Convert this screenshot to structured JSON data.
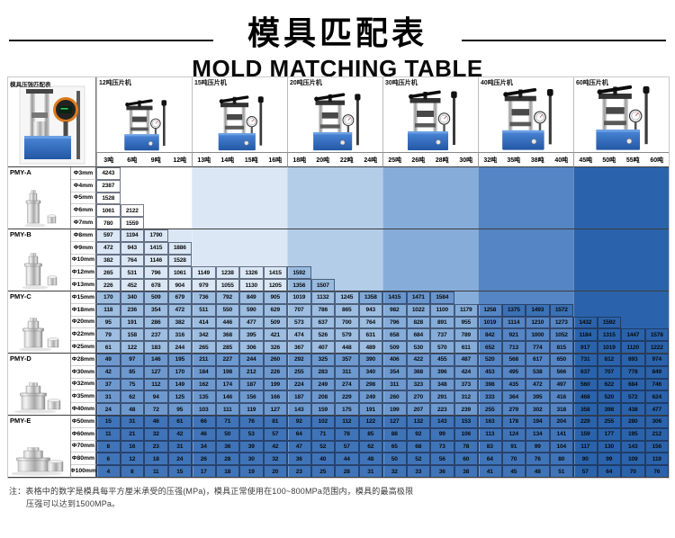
{
  "title": {
    "zh": "模具匹配表",
    "en": "MOLD MATCHING TABLE"
  },
  "corner": {
    "label": "模具压强匹配表"
  },
  "machines": [
    {
      "label": "12吨压片机",
      "tons": [
        "3吨",
        "6吨",
        "9吨",
        "12吨"
      ]
    },
    {
      "label": "15吨压片机",
      "tons": [
        "13吨",
        "14吨",
        "15吨",
        "16吨"
      ]
    },
    {
      "label": "20吨压片机",
      "tons": [
        "18吨",
        "20吨",
        "22吨",
        "24吨"
      ]
    },
    {
      "label": "30吨压片机",
      "tons": [
        "25吨",
        "26吨",
        "28吨",
        "30吨"
      ]
    },
    {
      "label": "40吨压片机",
      "tons": [
        "32吨",
        "35吨",
        "38吨",
        "40吨"
      ]
    },
    {
      "label": "60吨压片机",
      "tons": [
        "45吨",
        "50吨",
        "55吨",
        "60吨"
      ]
    }
  ],
  "columns_tons": [
    3,
    6,
    9,
    12,
    13,
    14,
    15,
    16,
    18,
    20,
    22,
    24,
    25,
    26,
    28,
    30,
    32,
    35,
    38,
    40,
    45,
    50,
    55,
    60
  ],
  "pressure_unit": "MPa",
  "mold_groups": [
    {
      "name": "PMY-A",
      "rows": [
        {
          "dia": "Φ3mm",
          "values": [
            4243
          ]
        },
        {
          "dia": "Φ4mm",
          "values": [
            2387
          ]
        },
        {
          "dia": "Φ5mm",
          "values": [
            1528
          ]
        },
        {
          "dia": "Φ6mm",
          "values": [
            1061,
            2122
          ]
        },
        {
          "dia": "Φ7mm",
          "values": [
            780,
            1559
          ]
        }
      ]
    },
    {
      "name": "PMY-B",
      "rows": [
        {
          "dia": "Φ8mm",
          "values": [
            597,
            1194,
            1790
          ]
        },
        {
          "dia": "Φ9mm",
          "values": [
            472,
            943,
            1415,
            1886
          ]
        },
        {
          "dia": "Φ10mm",
          "values": [
            382,
            764,
            1146,
            1528
          ]
        },
        {
          "dia": "Φ12mm",
          "values": [
            265,
            531,
            796,
            1061,
            1149,
            1238,
            1326,
            1415,
            1592
          ]
        },
        {
          "dia": "Φ13mm",
          "values": [
            226,
            452,
            678,
            904,
            979,
            1055,
            1130,
            1205,
            1356,
            1507
          ]
        }
      ]
    },
    {
      "name": "PMY-C",
      "rows": [
        {
          "dia": "Φ15mm",
          "values": [
            170,
            340,
            509,
            679,
            736,
            792,
            849,
            905,
            1019,
            1132,
            1245,
            1358,
            1415,
            1471,
            1584
          ]
        },
        {
          "dia": "Φ18mm",
          "values": [
            118,
            236,
            354,
            472,
            511,
            550,
            590,
            629,
            707,
            786,
            865,
            943,
            982,
            1022,
            1100,
            1179,
            1258,
            1375,
            1493,
            1572
          ]
        },
        {
          "dia": "Φ20mm",
          "values": [
            95,
            191,
            286,
            382,
            414,
            446,
            477,
            509,
            573,
            637,
            700,
            764,
            796,
            828,
            891,
            955,
            1019,
            1114,
            1210,
            1273,
            1432,
            1592
          ]
        },
        {
          "dia": "Φ22mm",
          "values": [
            79,
            158,
            237,
            316,
            342,
            368,
            395,
            421,
            474,
            526,
            579,
            631,
            658,
            684,
            737,
            789,
            842,
            921,
            1000,
            1052,
            1184,
            1315,
            1447,
            1578
          ]
        },
        {
          "dia": "Φ25mm",
          "values": [
            61,
            122,
            183,
            244,
            265,
            285,
            306,
            326,
            367,
            407,
            448,
            489,
            509,
            530,
            570,
            611,
            652,
            713,
            774,
            815,
            917,
            1019,
            1120,
            1222
          ]
        }
      ]
    },
    {
      "name": "PMY-D",
      "rows": [
        {
          "dia": "Φ28mm",
          "values": [
            49,
            97,
            146,
            195,
            211,
            227,
            244,
            260,
            292,
            325,
            357,
            390,
            406,
            422,
            455,
            487,
            520,
            568,
            617,
            650,
            731,
            812,
            893,
            974
          ]
        },
        {
          "dia": "Φ30mm",
          "values": [
            42,
            85,
            127,
            170,
            184,
            198,
            212,
            226,
            255,
            283,
            311,
            340,
            354,
            368,
            396,
            424,
            453,
            495,
            538,
            566,
            637,
            707,
            778,
            849
          ]
        },
        {
          "dia": "Φ32mm",
          "values": [
            37,
            75,
            112,
            149,
            162,
            174,
            187,
            199,
            224,
            249,
            274,
            298,
            311,
            323,
            348,
            373,
            398,
            435,
            472,
            497,
            560,
            622,
            684,
            746
          ]
        },
        {
          "dia": "Φ35mm",
          "values": [
            31,
            62,
            94,
            125,
            135,
            146,
            156,
            166,
            187,
            208,
            229,
            249,
            260,
            270,
            291,
            312,
            333,
            364,
            395,
            416,
            468,
            520,
            572,
            624
          ]
        },
        {
          "dia": "Φ40mm",
          "values": [
            24,
            48,
            72,
            95,
            103,
            111,
            119,
            127,
            143,
            159,
            175,
            191,
            199,
            207,
            223,
            239,
            255,
            279,
            302,
            318,
            358,
            398,
            438,
            477
          ]
        }
      ]
    },
    {
      "name": "PMY-E",
      "rows": [
        {
          "dia": "Φ50mm",
          "values": [
            15,
            31,
            46,
            61,
            66,
            71,
            76,
            81,
            92,
            102,
            112,
            122,
            127,
            132,
            143,
            153,
            163,
            178,
            194,
            204,
            229,
            255,
            280,
            306
          ]
        },
        {
          "dia": "Φ60mm",
          "values": [
            11,
            21,
            32,
            42,
            46,
            50,
            53,
            57,
            64,
            71,
            78,
            85,
            88,
            92,
            99,
            106,
            113,
            124,
            134,
            141,
            159,
            177,
            195,
            212
          ]
        },
        {
          "dia": "Φ70mm",
          "values": [
            8,
            16,
            23,
            31,
            34,
            36,
            39,
            42,
            47,
            52,
            57,
            62,
            65,
            68,
            73,
            78,
            83,
            91,
            99,
            104,
            117,
            130,
            143,
            156
          ]
        },
        {
          "dia": "Φ80mm",
          "values": [
            6,
            12,
            18,
            24,
            26,
            28,
            30,
            32,
            36,
            40,
            44,
            48,
            50,
            52,
            56,
            60,
            64,
            70,
            76,
            80,
            90,
            99,
            109,
            119
          ]
        },
        {
          "dia": "Φ100mm",
          "values": [
            4,
            8,
            11,
            15,
            17,
            18,
            19,
            20,
            23,
            25,
            28,
            31,
            32,
            33,
            36,
            38,
            41,
            45,
            48,
            51,
            57,
            64,
            70,
            76
          ]
        }
      ]
    }
  ],
  "note": {
    "line1": "注：表格中的数字是模具每平方厘米承受的压强(MPa)，模具正常使用在100~800MPa范围内，模具的最高极限",
    "line2": "压强可以达到1500MPa。"
  },
  "colors": {
    "band_palette": [
      "#ffffff",
      "#dbe7f5",
      "#b3cde9",
      "#86add9",
      "#5585c4",
      "#2a63ab"
    ],
    "base_blue": "#3570c0",
    "frame_dark": "#333333",
    "gauge_orange": "#dd7a1e"
  }
}
